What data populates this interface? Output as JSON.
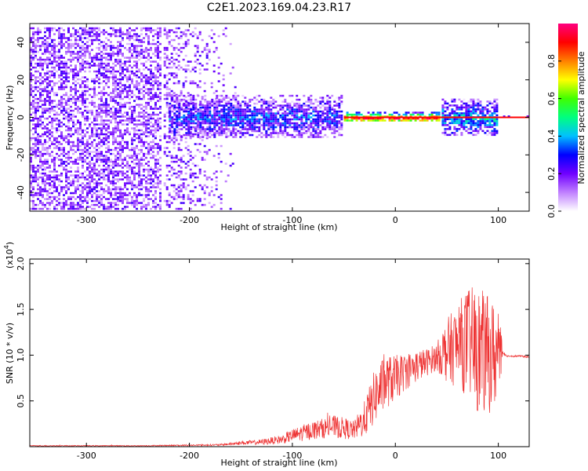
{
  "title": "C2E1.2023.169.04.23.R17",
  "chart_data": [
    {
      "type": "heatmap",
      "xlabel": "Height of straight line (km)",
      "ylabel": "Frequency (Hz)",
      "xlim": [
        -355,
        130
      ],
      "ylim": [
        -50,
        50
      ],
      "x_ticks": [
        -300,
        -200,
        -100,
        0,
        100
      ],
      "y_ticks": [
        -40,
        -20,
        0,
        20,
        40
      ],
      "x_tick_labels": [
        "-300",
        "-200",
        "-100",
        "0",
        "100"
      ],
      "y_tick_labels": [
        "-40",
        "-20",
        "0",
        "20",
        "40"
      ],
      "colorbar": {
        "label": "Normalized spectral amplitude",
        "range": [
          0,
          1
        ],
        "ticks": [
          0.0,
          0.2,
          0.4,
          0.6,
          0.8
        ],
        "tick_labels": [
          "0.0",
          "0.2",
          "0.4",
          "0.6",
          "0.8"
        ],
        "colormap": [
          "#ffffff",
          "#c080ff",
          "#7000ff",
          "#0000ff",
          "#00c0ff",
          "#00ff80",
          "#40ff00",
          "#ffff00",
          "#ff8000",
          "#ff0000",
          "#ff0080"
        ]
      },
      "regions": [
        {
          "x": [
            -355,
            -225
          ],
          "freq_spread": [
            -50,
            48
          ],
          "amplitude": 0.1,
          "description": "broadband noise"
        },
        {
          "x": [
            -225,
            -150
          ],
          "freq_spread": [
            -50,
            48
          ],
          "amplitude": 0.05,
          "description": "fading noise"
        },
        {
          "x": [
            -220,
            -50
          ],
          "freq_spread": [
            -12,
            12
          ],
          "amplitude": 0.3
        },
        {
          "x": [
            -50,
            45
          ],
          "freq_spread": [
            -3,
            3
          ],
          "amplitude": 0.9
        },
        {
          "x": [
            45,
            100
          ],
          "freq_spread": [
            -10,
            10
          ],
          "amplitude": 0.4
        },
        {
          "x": [
            100,
            130
          ],
          "freq_spread": [
            -1,
            1
          ],
          "amplitude": 0.9
        }
      ]
    },
    {
      "type": "line",
      "xlabel": "Height of straight line (km)",
      "ylabel": "SNR (10 * v/v)",
      "y_multiplier": "(x10",
      "y_multiplier_exp": "4",
      "y_multiplier_close": ")",
      "xlim": [
        -355,
        130
      ],
      "ylim": [
        0,
        2.05
      ],
      "x_ticks": [
        -300,
        -200,
        -100,
        0,
        100
      ],
      "y_ticks": [
        0.5,
        1.0,
        1.5,
        2.0
      ],
      "x_tick_labels": [
        "-300",
        "-200",
        "-100",
        "0",
        "100"
      ],
      "y_tick_labels": [
        "0.5",
        "1.0",
        "1.5",
        "2.0"
      ],
      "color": "#ee3333",
      "series": [
        {
          "x": [
            -355,
            -300,
            -250,
            -200,
            -170,
            -150,
            -130,
            -110,
            -100,
            -90,
            -80,
            -70,
            -60,
            -50,
            -40,
            -30,
            -20,
            -10,
            0,
            10,
            20,
            30,
            40,
            50,
            60,
            70,
            80,
            90,
            100,
            105,
            110,
            120,
            130
          ],
          "y": [
            0.01,
            0.01,
            0.01,
            0.015,
            0.02,
            0.04,
            0.05,
            0.08,
            0.12,
            0.15,
            0.18,
            0.2,
            0.22,
            0.2,
            0.18,
            0.3,
            0.55,
            0.7,
            0.75,
            0.82,
            0.88,
            0.92,
            0.98,
            1.05,
            1.1,
            1.15,
            1.05,
            1.0,
            1.0,
            1.0,
            0.99,
            0.99,
            0.98
          ],
          "noise_amplitude": [
            0.005,
            0.005,
            0.005,
            0.008,
            0.01,
            0.02,
            0.03,
            0.05,
            0.07,
            0.09,
            0.1,
            0.11,
            0.12,
            0.12,
            0.1,
            0.2,
            0.3,
            0.3,
            0.25,
            0.2,
            0.18,
            0.15,
            0.15,
            0.35,
            0.45,
            0.6,
            0.7,
            0.65,
            0.55,
            0.02,
            0.01,
            0.01,
            0.01
          ]
        }
      ]
    }
  ]
}
